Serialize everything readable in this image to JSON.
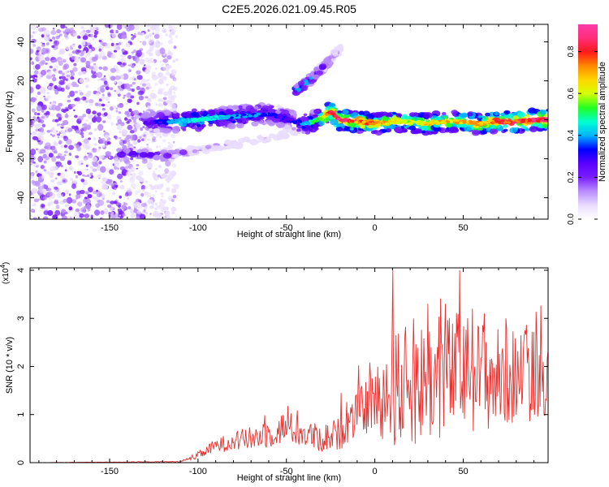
{
  "figure_title": "C2E5.2026.021.09.45.R05",
  "colors": {
    "snr_line": "#e8312f",
    "frame": "#000000",
    "colormap": [
      "#ffffff",
      "#e9dcff",
      "#b98cff",
      "#7a1fff",
      "#5a00ff",
      "#0000ff",
      "#00b4ff",
      "#00ffd0",
      "#22ff22",
      "#d2ff00",
      "#ffd700",
      "#ff8a00",
      "#ff1a1a",
      "#ff2e7a",
      "#ff3aa8"
    ]
  },
  "chart_data": [
    {
      "type": "heatmap",
      "title": "C2E5.2026.021.09.45.R05",
      "xlabel": "Height of straight line (km)",
      "ylabel": "Frequency (Hz)",
      "xlim": [
        -195,
        98
      ],
      "ylim": [
        -51,
        49
      ],
      "xticks": [
        -150,
        -100,
        -50,
        0,
        50
      ],
      "yticks": [
        -40,
        -20,
        0,
        20,
        40
      ],
      "colorbar": {
        "label": "Normalized spectral amplitude",
        "range": [
          0,
          0.93
        ],
        "ticks": [
          "0.0",
          "0.2",
          "0.4",
          "0.6",
          "0.8"
        ],
        "tick_values": [
          0.0,
          0.2,
          0.4,
          0.6,
          0.8
        ]
      },
      "features": {
        "noise_region_x": [
          -195,
          -112
        ],
        "main_line": {
          "x": [
            -130,
            -115,
            -100,
            -90,
            -75,
            -60,
            -52,
            -45,
            -38,
            -30,
            -25,
            -20,
            -10,
            0,
            10,
            20,
            30,
            40,
            50,
            60,
            70,
            80,
            90,
            98
          ],
          "freq": [
            -1,
            -1,
            0,
            1,
            2,
            3,
            1,
            -1,
            -2,
            1,
            4,
            0,
            -1,
            -2,
            -1,
            -1,
            -2,
            -1,
            -1,
            -2,
            -1,
            -1,
            0,
            0
          ],
          "amp": [
            0.25,
            0.4,
            0.5,
            0.45,
            0.4,
            0.35,
            0.3,
            0.3,
            0.45,
            0.6,
            0.85,
            0.9,
            0.8,
            0.75,
            0.7,
            0.65,
            0.7,
            0.72,
            0.7,
            0.75,
            0.8,
            0.85,
            0.9,
            0.9
          ]
        },
        "lower_branch": {
          "x": [
            -145,
            -130,
            -120,
            -110,
            -90,
            -70,
            -50,
            -42
          ],
          "freq": [
            -17,
            -17.5,
            -18,
            -17,
            -14,
            -11,
            -7,
            -5
          ],
          "amp": [
            0.35,
            0.35,
            0.3,
            0.2,
            0.12,
            0.1,
            0.1,
            0.12
          ]
        },
        "upper_branch": {
          "x": [
            -45,
            -40,
            -34,
            -28,
            -23,
            -19
          ],
          "freq": [
            15,
            18,
            23,
            28,
            33,
            37
          ],
          "amp": [
            0.45,
            0.4,
            0.35,
            0.25,
            0.15,
            0.1
          ]
        }
      }
    },
    {
      "type": "line",
      "xlabel": "Height of straight line (km)",
      "ylabel": "SNR (10 * v/v)",
      "scale_label": "(x10",
      "scale_exponent": "4",
      "scale_suffix": ")",
      "xlim": [
        -195,
        98
      ],
      "ylim": [
        0,
        4.05
      ],
      "xticks": [
        -150,
        -100,
        -50,
        0,
        50
      ],
      "yticks": [
        0,
        1,
        2,
        3,
        4
      ],
      "series": [
        {
          "name": "SNR",
          "envelope": {
            "x": [
              -195,
              -110,
              -100,
              -90,
              -80,
              -70,
              -60,
              -50,
              -40,
              -30,
              -20,
              -10,
              0,
              10,
              20,
              30,
              40,
              50,
              60,
              70,
              80,
              90,
              98
            ],
            "mean": [
              0.0,
              0.02,
              0.15,
              0.35,
              0.45,
              0.5,
              0.6,
              0.75,
              0.6,
              0.5,
              0.6,
              1.0,
              1.3,
              1.5,
              1.6,
              1.7,
              1.8,
              1.9,
              1.8,
              1.75,
              1.8,
              1.85,
              1.9
            ],
            "spread": [
              0.0,
              0.01,
              0.08,
              0.15,
              0.2,
              0.25,
              0.3,
              0.35,
              0.3,
              0.3,
              0.35,
              0.45,
              0.7,
              1.2,
              1.3,
              1.3,
              1.3,
              1.3,
              1.2,
              1.1,
              1.0,
              1.0,
              0.9
            ]
          },
          "peaks": [
            {
              "x": 10,
              "y": 4.0
            },
            {
              "x": 48,
              "y": 4.0
            },
            {
              "x": 12,
              "y": 2.65
            },
            {
              "x": 22,
              "y": 3.0
            },
            {
              "x": 30,
              "y": 3.3
            },
            {
              "x": 40,
              "y": 3.3
            },
            {
              "x": 55,
              "y": 3.2
            },
            {
              "x": 62,
              "y": 3.1
            },
            {
              "x": 74,
              "y": 3.0
            },
            {
              "x": 85,
              "y": 2.75
            },
            {
              "x": -9,
              "y": 2.02
            },
            {
              "x": -19,
              "y": 1.45
            }
          ]
        }
      ]
    }
  ]
}
